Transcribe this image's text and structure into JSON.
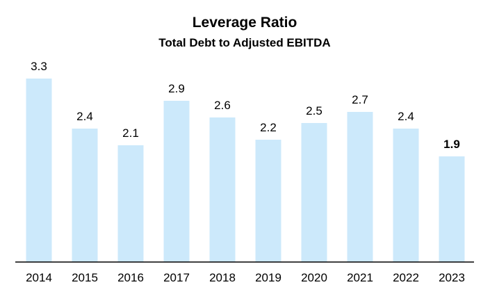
{
  "chart_data": {
    "type": "bar",
    "title": "Leverage Ratio",
    "subtitle": "Total Debt to Adjusted EBITDA",
    "categories": [
      "2014",
      "2015",
      "2016",
      "2017",
      "2018",
      "2019",
      "2020",
      "2021",
      "2022",
      "2023"
    ],
    "values": [
      3.3,
      2.4,
      2.1,
      2.9,
      2.6,
      2.2,
      2.5,
      2.7,
      2.4,
      1.9
    ],
    "data_labels": [
      "3.3",
      "2.4",
      "2.1",
      "2.9",
      "2.6",
      "2.2",
      "2.5",
      "2.7",
      "2.4",
      "1.9"
    ],
    "highlight_label_index": 9,
    "bar_color": "#cce9fb",
    "axis_color": "#000000",
    "ylim": [
      0,
      3.3
    ],
    "grid": false,
    "legend": "none"
  }
}
